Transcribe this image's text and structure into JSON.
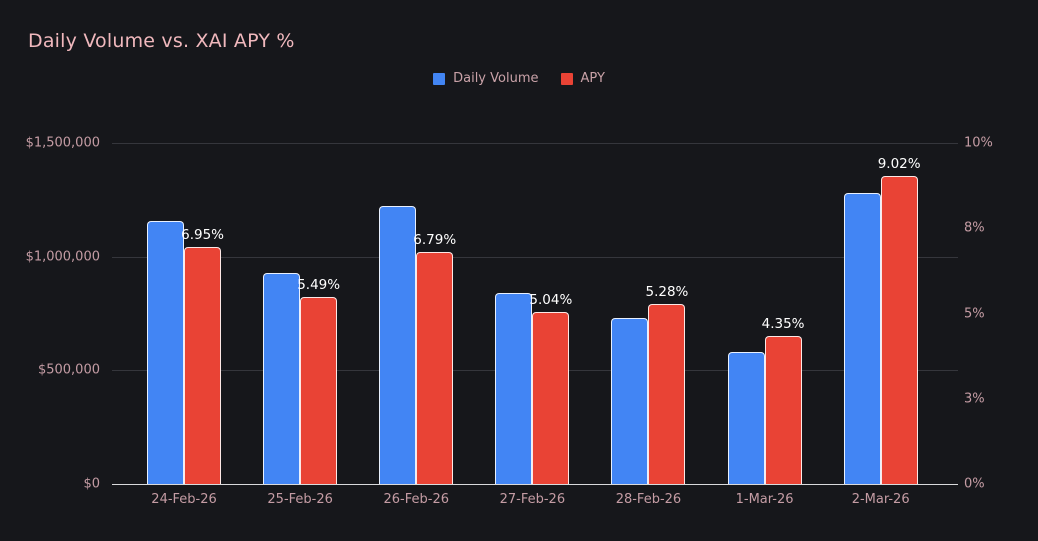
{
  "title": "Daily Volume vs. XAI APY %",
  "colors": {
    "background": "#16171b",
    "title_text": "#f0b8bd",
    "axis_label_text": "#c49ca4",
    "legend_text": "#c9a2a8",
    "gridline": "#35363c",
    "axis_line": "#d9dadc",
    "data_label_text": "#ffffff",
    "volume_blue": "#4285f4",
    "apy_red": "#e94335"
  },
  "legend": [
    {
      "label": "Daily Volume",
      "color": "#4285f4"
    },
    {
      "label": "APY",
      "color": "#e94335"
    }
  ],
  "chart_data": {
    "type": "bar",
    "title": "Daily Volume vs. XAI APY %",
    "categories": [
      "24-Feb-26",
      "25-Feb-26",
      "26-Feb-26",
      "27-Feb-26",
      "28-Feb-26",
      "1-Mar-26",
      "2-Mar-26"
    ],
    "series": [
      {
        "name": "Daily Volume",
        "axis": "left",
        "color": "#4285f4",
        "values": [
          1155000,
          930000,
          1225000,
          840000,
          730000,
          580000,
          1280000
        ]
      },
      {
        "name": "APY",
        "axis": "right",
        "color": "#e94335",
        "values": [
          6.95,
          5.49,
          6.79,
          5.04,
          5.28,
          4.35,
          9.02
        ],
        "point_labels": [
          "6.95%",
          "5.49%",
          "6.79%",
          "5.04%",
          "5.28%",
          "4.35%",
          "9.02%"
        ]
      }
    ],
    "left_axis": {
      "range": [
        0,
        1500000
      ],
      "ticks": [
        {
          "value": 0,
          "label": "$0"
        },
        {
          "value": 500000,
          "label": "$500,000"
        },
        {
          "value": 1000000,
          "label": "$1,000,000"
        },
        {
          "value": 1500000,
          "label": "$1,500,000"
        }
      ]
    },
    "right_axis": {
      "range": [
        0,
        10
      ],
      "ticks": [
        {
          "value": 0,
          "label": "0%"
        },
        {
          "value": 2.5,
          "label": "3%"
        },
        {
          "value": 5,
          "label": "5%"
        },
        {
          "value": 7.5,
          "label": "8%"
        },
        {
          "value": 10,
          "label": "10%"
        }
      ]
    },
    "grid": "horizontal",
    "legend_position": "top-center"
  }
}
